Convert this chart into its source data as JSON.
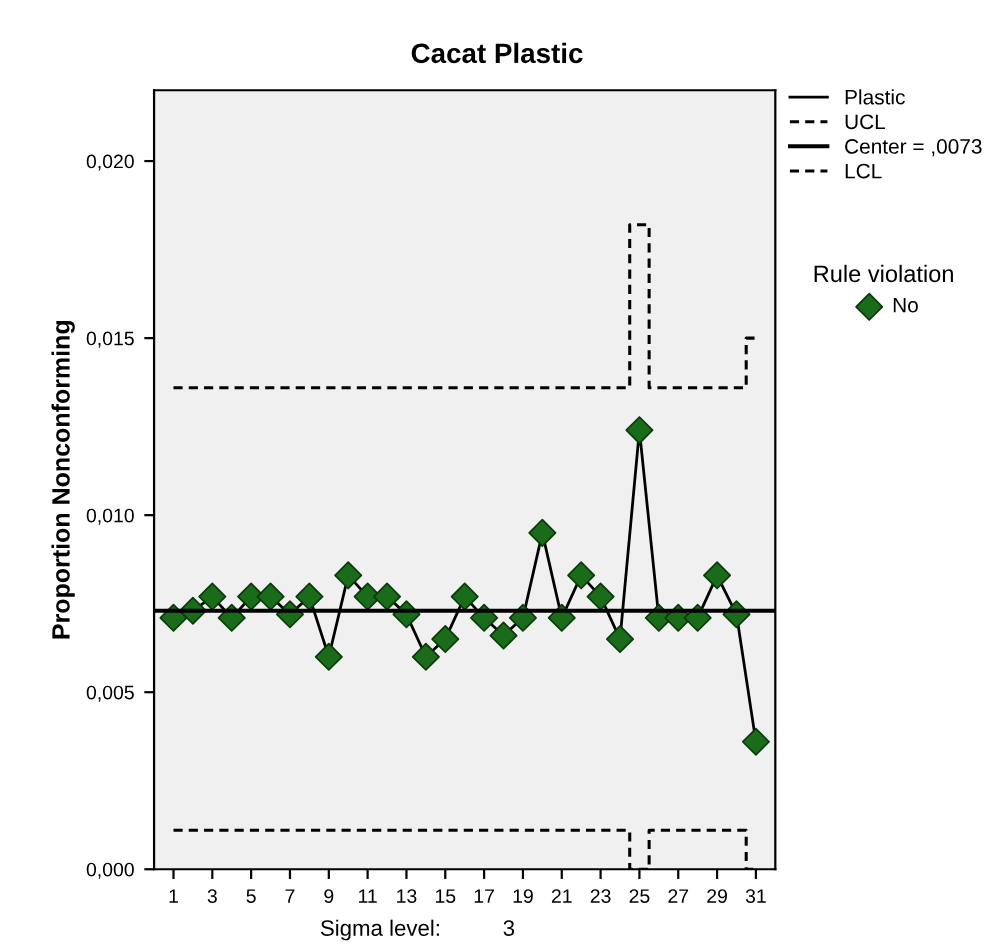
{
  "chart_data": {
    "type": "line",
    "title": "Cacat Plastic",
    "xlabel": null,
    "ylabel": "Proportion Nonconforming",
    "x": [
      1,
      2,
      3,
      4,
      5,
      6,
      7,
      8,
      9,
      10,
      11,
      12,
      13,
      14,
      15,
      16,
      17,
      18,
      19,
      20,
      21,
      22,
      23,
      24,
      25,
      26,
      27,
      28,
      29,
      30,
      31
    ],
    "series": [
      {
        "name": "Plastic",
        "color": "#000000",
        "marker": "none",
        "line_style": "solid",
        "values": [
          0.0071,
          0.0073,
          0.0077,
          0.0071,
          0.0077,
          0.0077,
          0.0072,
          0.0077,
          0.006,
          0.0083,
          0.0077,
          0.0077,
          0.0072,
          0.006,
          0.0065,
          0.0077,
          0.0071,
          0.0066,
          0.0071,
          0.0095,
          0.0071,
          0.0083,
          0.0077,
          0.0065,
          0.0124,
          0.0071,
          0.0071,
          0.0071,
          0.0083,
          0.0072,
          0.0036
        ]
      },
      {
        "name": "UCL",
        "type": "step",
        "color": "#000000",
        "line_style": "dashed",
        "values": [
          0.0136,
          0.0136,
          0.0136,
          0.0136,
          0.0136,
          0.0136,
          0.0136,
          0.0136,
          0.0136,
          0.0136,
          0.0136,
          0.0136,
          0.0136,
          0.0136,
          0.0136,
          0.0136,
          0.0136,
          0.0136,
          0.0136,
          0.0136,
          0.0136,
          0.0136,
          0.0136,
          0.0136,
          0.0182,
          0.0136,
          0.0136,
          0.0136,
          0.0136,
          0.0136,
          0.015
        ]
      },
      {
        "name": "LCL",
        "type": "step",
        "color": "#000000",
        "line_style": "dashed",
        "values": [
          0.0011,
          0.0011,
          0.0011,
          0.0011,
          0.0011,
          0.0011,
          0.0011,
          0.0011,
          0.0011,
          0.0011,
          0.0011,
          0.0011,
          0.0011,
          0.0011,
          0.0011,
          0.0011,
          0.0011,
          0.0011,
          0.0011,
          0.0011,
          0.0011,
          0.0011,
          0.0011,
          0.0011,
          0.0,
          0.0011,
          0.0011,
          0.0011,
          0.0011,
          0.0011,
          0.0
        ]
      },
      {
        "name": "No",
        "type": "scatter",
        "color": "#1a6b1a",
        "marker": "diamond",
        "values": [
          0.0071,
          0.0073,
          0.0077,
          0.0071,
          0.0077,
          0.0077,
          0.0072,
          0.0077,
          0.006,
          0.0083,
          0.0077,
          0.0077,
          0.0072,
          0.006,
          0.0065,
          0.0077,
          0.0071,
          0.0066,
          0.0071,
          0.0095,
          0.0071,
          0.0083,
          0.0077,
          0.0065,
          0.0124,
          0.0071,
          0.0071,
          0.0071,
          0.0083,
          0.0072,
          0.0036
        ]
      }
    ],
    "ref_lines": [
      {
        "axis": "y",
        "value": 0.0073,
        "label": "Center = ,0073",
        "color": "#000000",
        "line_style": "solid"
      }
    ],
    "legend_title": "Rule violation",
    "legend": "right",
    "grid": false,
    "xlim": [
      0,
      32
    ],
    "xticks": [
      1,
      3,
      5,
      7,
      9,
      11,
      13,
      15,
      17,
      19,
      21,
      23,
      25,
      27,
      29,
      31
    ],
    "ylim": [
      0,
      0.022
    ],
    "yticks": [
      {
        "value": 0,
        "label": "0,000"
      },
      {
        "value": 0.005,
        "label": "0,005"
      },
      {
        "value": 0.01,
        "label": "0,010"
      },
      {
        "value": 0.015,
        "label": "0,015"
      },
      {
        "value": 0.02,
        "label": "0,020"
      }
    ],
    "annotations": [
      "Sigma level:          3"
    ]
  }
}
